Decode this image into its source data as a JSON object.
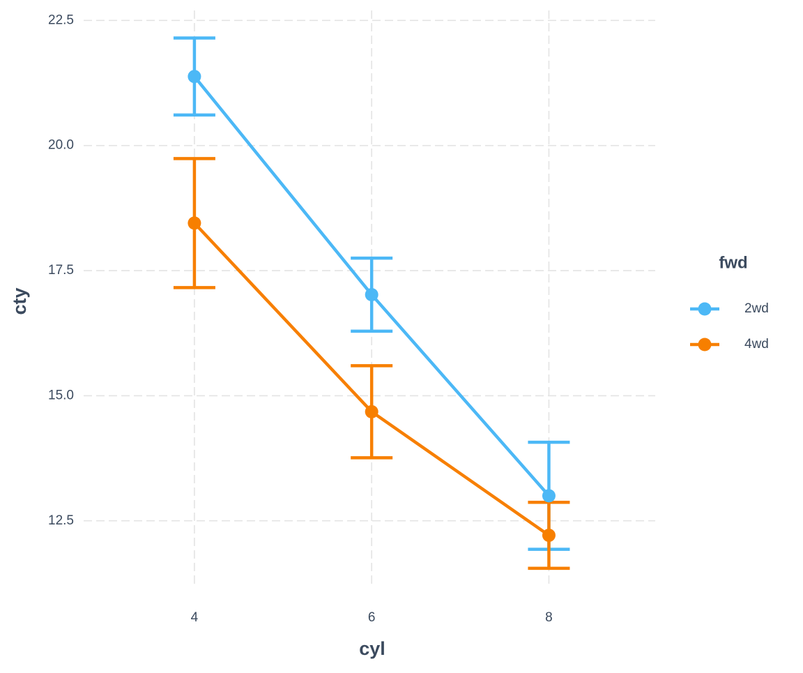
{
  "chart_data": {
    "type": "line",
    "x_label": "cyl",
    "y_label": "cty",
    "legend_title": "fwd",
    "x": [
      4,
      6,
      8
    ],
    "series": [
      {
        "name": "2wd",
        "color": "#4cb8f6",
        "values": [
          21.38,
          17.02,
          13.0
        ],
        "errors": [
          0.77,
          0.73,
          1.07
        ]
      },
      {
        "name": "4wd",
        "color": "#f77f00",
        "values": [
          18.45,
          14.68,
          12.21
        ],
        "errors": [
          1.29,
          0.92,
          0.66
        ]
      }
    ],
    "xlim": [
      2.75,
      9.2
    ],
    "xticks": [
      4,
      6,
      8
    ],
    "ylim": [
      11.2,
      22.7
    ],
    "yticks": [
      {
        "value": 12.5,
        "label": "12.5"
      },
      {
        "value": 15,
        "label": "15.0"
      },
      {
        "value": 17.5,
        "label": "17.5"
      },
      {
        "value": 20,
        "label": "20.0"
      },
      {
        "value": 22.5,
        "label": "22.5"
      }
    ],
    "grid": true,
    "legend_position": "right"
  }
}
